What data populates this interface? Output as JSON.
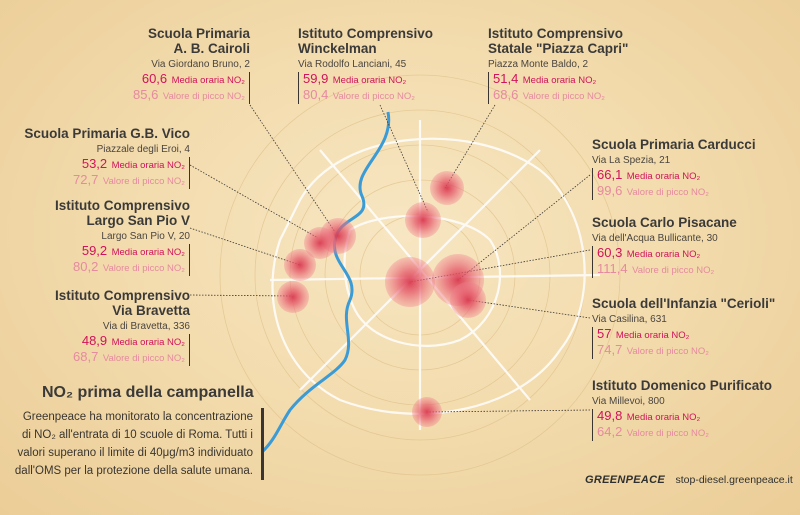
{
  "intro": {
    "title": "NO₂ prima della campanella",
    "body": "Greenpeace ha monitorato la concentrazione di NO₂ all'entrata di 10 scuole di Roma. Tutti i valori superano il limite di 40μg/m3 individuato dall'OMS per la protezione della salute umana."
  },
  "footer": {
    "brand": "GREENPEACE",
    "url": "stop-diesel.greenpeace.it"
  },
  "labels": {
    "avg": "Media oraria NO₂",
    "peak": "Valore di picco NO₂"
  },
  "schools": [
    {
      "name": "Scuola Primaria\nA. B. Cairoli",
      "address": "Via Giordano Bruno, 2",
      "avg": "60,6",
      "peak": "85,6"
    },
    {
      "name": "Istituto Comprensivo\nWinckelman",
      "address": "Via Rodolfo Lanciani, 45",
      "avg": "59,9",
      "peak": "80,4"
    },
    {
      "name": "Istituto Comprensivo\nStatale \"Piazza Capri\"",
      "address": "Piazza Monte Baldo, 2",
      "avg": "51,4",
      "peak": "68,6"
    },
    {
      "name": "Scuola Primaria G.B. Vico",
      "address": "Piazzale degli Eroi, 4",
      "avg": "53,2",
      "peak": "72,7"
    },
    {
      "name": "Istituto Comprensivo\nLargo San Pio V",
      "address": "Largo San Pio V, 20",
      "avg": "59,2",
      "peak": "80,2"
    },
    {
      "name": "Istituto Comprensivo\nVia Bravetta",
      "address": "Via di Bravetta, 336",
      "avg": "48,9",
      "peak": "68,7"
    },
    {
      "name": "Scuola Primaria Carducci",
      "address": "Via La Spezia, 21",
      "avg": "66,1",
      "peak": "99,6"
    },
    {
      "name": "Scuola Carlo Pisacane",
      "address": "Via dell'Acqua Bullicante, 30",
      "avg": "60,3",
      "peak": "111,4"
    },
    {
      "name": "Scuola dell'Infanzia \"Cerioli\"",
      "address": "Via Casilina, 631",
      "avg": "57",
      "peak": "74,7"
    },
    {
      "name": "Istituto Domenico Purificato",
      "address": "Via Millevoi, 800",
      "avg": "49,8",
      "peak": "64,2"
    }
  ],
  "colors": {
    "accent": "#d0135a",
    "peak": "#e68aa0",
    "river": "#3a9bd6",
    "bubble": "#e8445a"
  }
}
